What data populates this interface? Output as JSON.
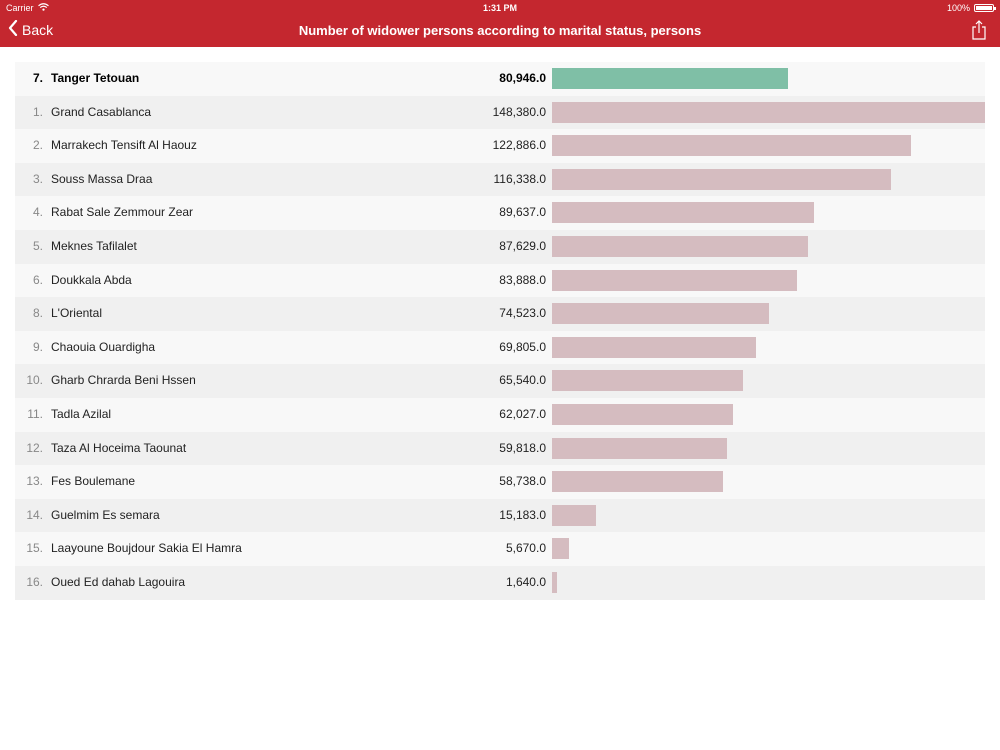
{
  "status_bar": {
    "carrier": "Carrier",
    "time": "1:31 PM",
    "battery": "100%"
  },
  "nav": {
    "back_label": "Back",
    "title": "Number of widower persons according to marital status, persons"
  },
  "colors": {
    "header_bg": "#c4272f",
    "highlight_bar": "#7fbfa6",
    "bar": "#d5bcc0"
  },
  "chart_data": {
    "type": "bar",
    "max_value": 148380,
    "highlight_index": 0,
    "rows": [
      {
        "rank": "7.",
        "name": "Tanger Tetouan",
        "value": 80946.0,
        "label": "80,946.0"
      },
      {
        "rank": "1.",
        "name": "Grand Casablanca",
        "value": 148380.0,
        "label": "148,380.0"
      },
      {
        "rank": "2.",
        "name": "Marrakech Tensift Al Haouz",
        "value": 122886.0,
        "label": "122,886.0"
      },
      {
        "rank": "3.",
        "name": "Souss Massa Draa",
        "value": 116338.0,
        "label": "116,338.0"
      },
      {
        "rank": "4.",
        "name": "Rabat Sale Zemmour Zear",
        "value": 89637.0,
        "label": "89,637.0"
      },
      {
        "rank": "5.",
        "name": "Meknes Tafilalet",
        "value": 87629.0,
        "label": "87,629.0"
      },
      {
        "rank": "6.",
        "name": "Doukkala Abda",
        "value": 83888.0,
        "label": "83,888.0"
      },
      {
        "rank": "8.",
        "name": "L'Oriental",
        "value": 74523.0,
        "label": "74,523.0"
      },
      {
        "rank": "9.",
        "name": "Chaouia Ouardigha",
        "value": 69805.0,
        "label": "69,805.0"
      },
      {
        "rank": "10.",
        "name": "Gharb Chrarda Beni Hssen",
        "value": 65540.0,
        "label": "65,540.0"
      },
      {
        "rank": "11.",
        "name": "Tadla Azilal",
        "value": 62027.0,
        "label": "62,027.0"
      },
      {
        "rank": "12.",
        "name": "Taza Al Hoceima Taounat",
        "value": 59818.0,
        "label": "59,818.0"
      },
      {
        "rank": "13.",
        "name": "Fes Boulemane",
        "value": 58738.0,
        "label": "58,738.0"
      },
      {
        "rank": "14.",
        "name": "Guelmim Es semara",
        "value": 15183.0,
        "label": "15,183.0"
      },
      {
        "rank": "15.",
        "name": "Laayoune Boujdour Sakia El Hamra",
        "value": 5670.0,
        "label": "5,670.0"
      },
      {
        "rank": "16.",
        "name": "Oued Ed dahab Lagouira",
        "value": 1640.0,
        "label": "1,640.0"
      }
    ]
  }
}
